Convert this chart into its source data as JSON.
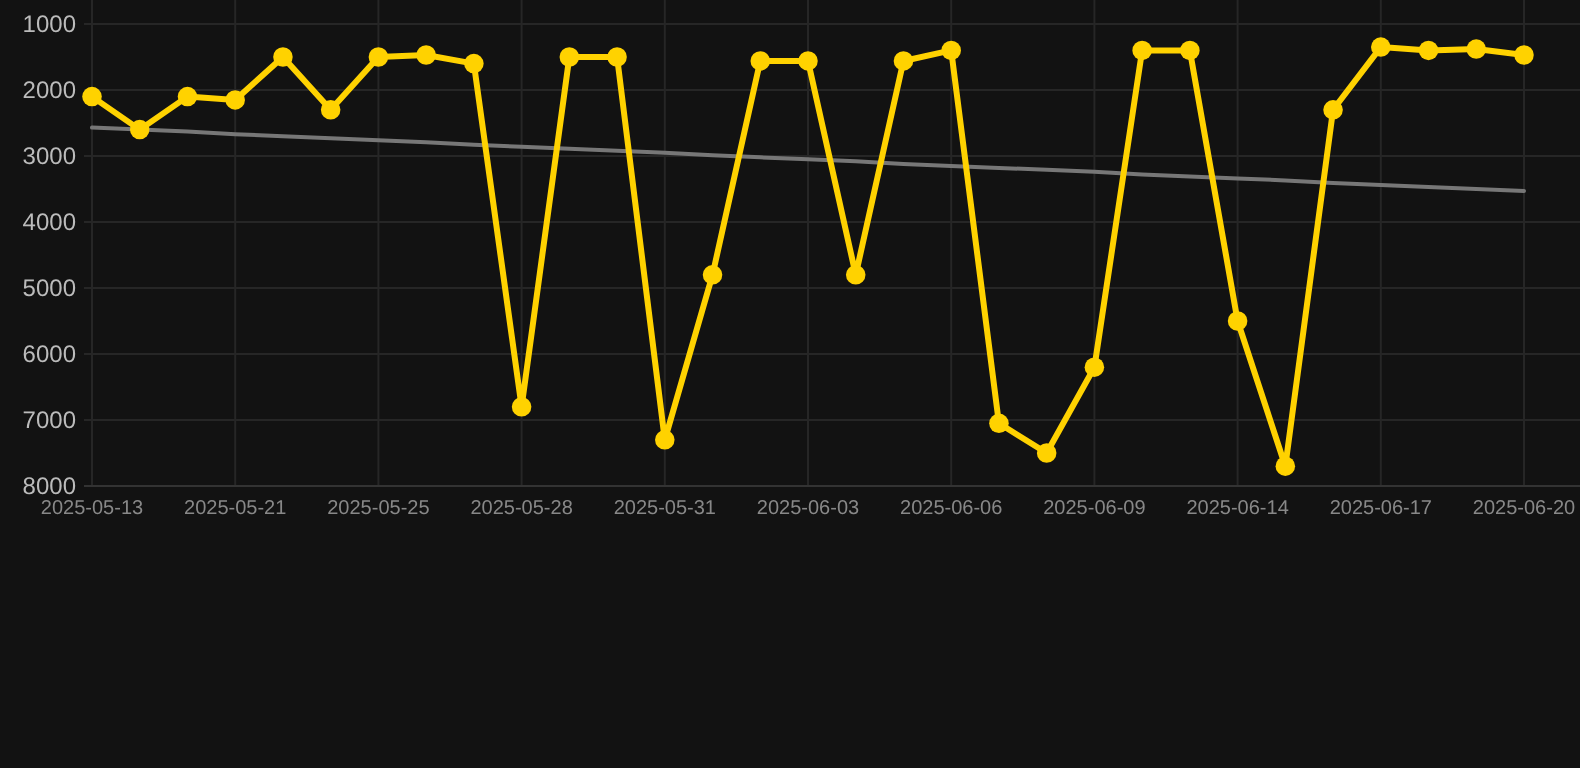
{
  "chart_data": {
    "type": "line",
    "categories": [
      "2025-05-13",
      null,
      null,
      "2025-05-21",
      null,
      null,
      "2025-05-25",
      null,
      null,
      "2025-05-28",
      null,
      null,
      "2025-05-31",
      null,
      null,
      "2025-06-03",
      null,
      null,
      "2025-06-06",
      null,
      null,
      "2025-06-09",
      null,
      null,
      "2025-06-14",
      null,
      null,
      "2025-06-17",
      null,
      null,
      "2025-06-20"
    ],
    "series": [
      {
        "color": "#ffd200",
        "values": [
          2100,
          2600,
          2100,
          2150,
          1500,
          2300,
          1500,
          1470,
          1600,
          6800,
          1500,
          1500,
          7300,
          4800,
          1560,
          1560,
          4800,
          1560,
          1400,
          7050,
          7500,
          6200,
          1400,
          1400,
          5500,
          7700,
          2300,
          1350,
          1400,
          1380,
          1470
        ],
        "marker": "circle"
      },
      {
        "type": "line",
        "color": "#777777",
        "values": [
          2570,
          2600,
          2630,
          2670,
          2700,
          2730,
          2760,
          2790,
          2830,
          2860,
          2890,
          2920,
          2950,
          2990,
          3020,
          3050,
          3080,
          3120,
          3150,
          3180,
          3210,
          3240,
          3280,
          3310,
          3340,
          3370,
          3410,
          3440,
          3470,
          3500,
          3530
        ],
        "marker": "none"
      }
    ],
    "ylim": [
      8000,
      1000
    ],
    "yticks": [
      1000,
      2000,
      3000,
      4000,
      5000,
      6000,
      7000,
      8000
    ],
    "grid": true
  }
}
